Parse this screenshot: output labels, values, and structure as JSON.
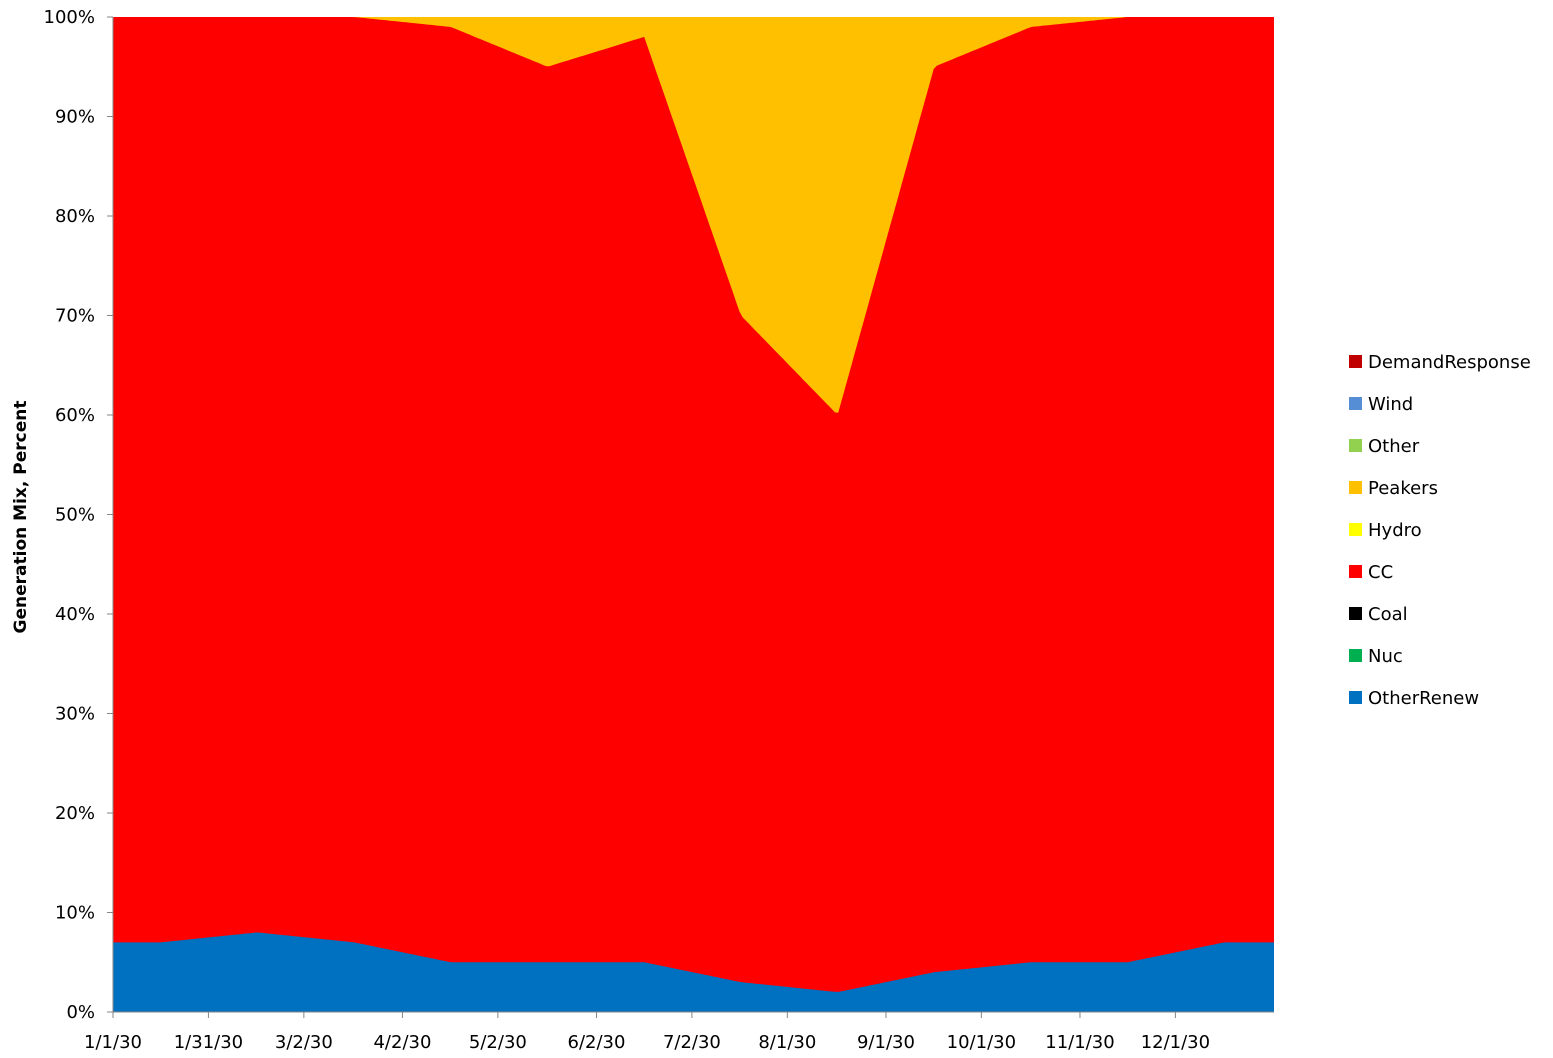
{
  "chart_data": {
    "type": "area",
    "stacking": "percent",
    "title": "",
    "xlabel": "",
    "ylabel": "Generation Mix, Percent",
    "ylim": [
      0,
      100
    ],
    "y_ticks": [
      "0%",
      "10%",
      "20%",
      "30%",
      "40%",
      "50%",
      "60%",
      "70%",
      "80%",
      "90%",
      "100%"
    ],
    "x_ticks": [
      "1/1/30",
      "1/31/30",
      "3/2/30",
      "4/2/30",
      "5/2/30",
      "6/2/30",
      "7/2/30",
      "8/1/30",
      "9/1/30",
      "10/1/30",
      "11/1/30",
      "12/1/30"
    ],
    "x_tick_day_index": [
      0,
      30,
      60,
      91,
      121,
      152,
      182,
      212,
      243,
      273,
      304,
      334
    ],
    "days_in_year": 365,
    "legend_position": "right",
    "legend": [
      {
        "name": "DemandResponse",
        "color": "#c00000"
      },
      {
        "name": "Wind",
        "color": "#558ed5"
      },
      {
        "name": "Other",
        "color": "#92d050"
      },
      {
        "name": "Peakers",
        "color": "#ffc000"
      },
      {
        "name": "Hydro",
        "color": "#ffff00"
      },
      {
        "name": "CC",
        "color": "#ff0000"
      },
      {
        "name": "Coal",
        "color": "#000000"
      },
      {
        "name": "Nuc",
        "color": "#00b050"
      },
      {
        "name": "OtherRenew",
        "color": "#0070c0"
      }
    ],
    "series_monthly_approx": {
      "months": [
        "Jan",
        "Feb",
        "Mar",
        "Apr",
        "May",
        "Jun",
        "Jul",
        "Aug",
        "Sep",
        "Oct",
        "Nov",
        "Dec"
      ],
      "OtherRenew": [
        7,
        8,
        7,
        5,
        5,
        5,
        3,
        2,
        4,
        5,
        5,
        7
      ],
      "Peakers": [
        0,
        0,
        0,
        1,
        5,
        2,
        30,
        40,
        5,
        1,
        0,
        0
      ],
      "CC": [
        93,
        92,
        93,
        94,
        90,
        93,
        67,
        58,
        91,
        94,
        95,
        93
      ]
    }
  }
}
